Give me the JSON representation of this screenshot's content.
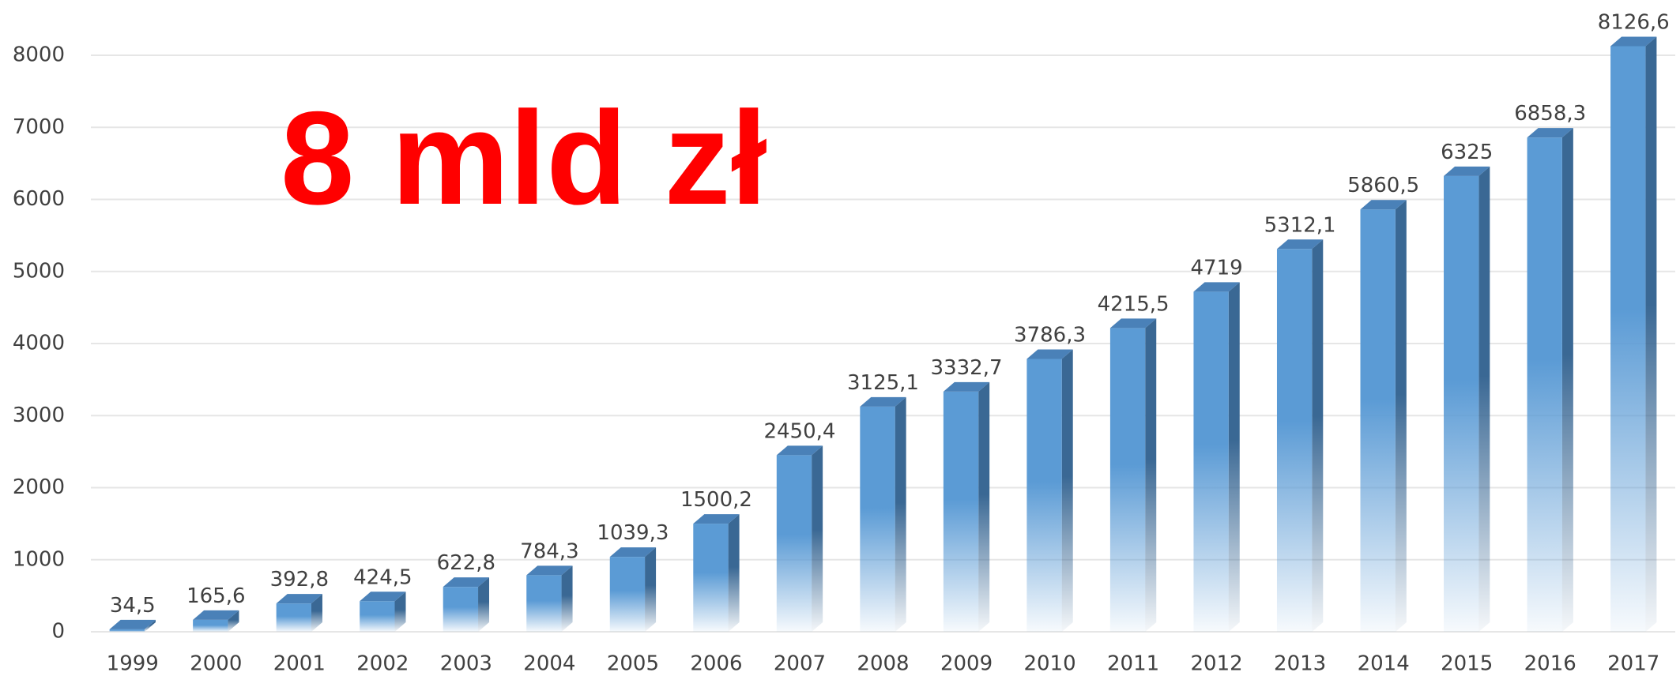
{
  "chart_data": {
    "type": "bar",
    "annotation": "8 mld zł",
    "categories": [
      "1999",
      "2000",
      "2001",
      "2002",
      "2003",
      "2004",
      "2005",
      "2006",
      "2007",
      "2008",
      "2009",
      "2010",
      "2011",
      "2012",
      "2013",
      "2014",
      "2015",
      "2016",
      "2017"
    ],
    "values": [
      34.5,
      165.6,
      392.8,
      424.5,
      622.8,
      784.3,
      1039.3,
      1500.2,
      2450.4,
      3125.1,
      3332.7,
      3786.3,
      4215.5,
      4719,
      5312.1,
      5860.5,
      6325,
      6858.3,
      8126.6
    ],
    "value_labels": [
      "34,5",
      "165,6",
      "392,8",
      "424,5",
      "622,8",
      "784,3",
      "1039,3",
      "1500,2",
      "2450,4",
      "3125,1",
      "3332,7",
      "3786,3",
      "4215,5",
      "4719",
      "5312,1",
      "5860,5",
      "6325",
      "6858,3",
      "8126,6"
    ],
    "color": "#5b9bd5",
    "ylim": [
      0,
      8000
    ],
    "yticks": [
      0,
      1000,
      2000,
      3000,
      4000,
      5000,
      6000,
      7000,
      8000
    ],
    "grid": true
  }
}
